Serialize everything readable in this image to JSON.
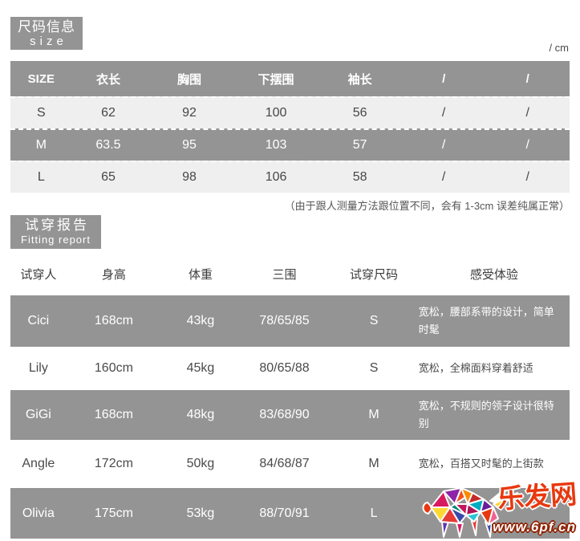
{
  "unit_label": "/ cm",
  "size_section": {
    "badge": {
      "title": "尺码信息",
      "subtitle": "size"
    },
    "table": {
      "headers": [
        "SIZE",
        "衣长",
        "胸围",
        "下摆围",
        "袖长",
        "/",
        "/"
      ],
      "rows": [
        {
          "cells": [
            "S",
            "62",
            "92",
            "100",
            "56",
            "/",
            "/"
          ],
          "highlight": false
        },
        {
          "cells": [
            "M",
            "63.5",
            "95",
            "103",
            "57",
            "/",
            "/"
          ],
          "highlight": true
        },
        {
          "cells": [
            "L",
            "65",
            "98",
            "106",
            "58",
            "/",
            "/"
          ],
          "highlight": false
        }
      ]
    },
    "note": "（由于跟人测量方法跟位置不同，会有 1-3cm 误差纯属正常）"
  },
  "fitting_section": {
    "badge": {
      "title": "试穿报告",
      "subtitle": "Fitting report"
    },
    "table": {
      "headers": [
        "试穿人",
        "身高",
        "体重",
        "三围",
        "试穿尺码",
        "感受体验"
      ],
      "rows": [
        {
          "cells": [
            "Cici",
            "168cm",
            "43kg",
            "78/65/85",
            "S",
            "宽松，腰部系带的设计，简单时髦"
          ],
          "highlight": true
        },
        {
          "cells": [
            "Lily",
            "160cm",
            "45kg",
            "80/65/88",
            "S",
            "宽松，全棉面料穿着舒适"
          ],
          "highlight": false
        },
        {
          "cells": [
            "GiGi",
            "168cm",
            "48kg",
            "83/68/90",
            "M",
            "宽松，不规则的领子设计很特别"
          ],
          "highlight": true
        },
        {
          "cells": [
            "Angle",
            "172cm",
            "50kg",
            "84/68/87",
            "M",
            "宽松，百搭又时髦的上街款"
          ],
          "highlight": false
        },
        {
          "cells": [
            "Olivia",
            "175cm",
            "53kg",
            "88/70/91",
            "L",
            ""
          ],
          "highlight": true
        }
      ]
    }
  },
  "watermark": {
    "site_name": "乐发网",
    "site_url": "www.6pf.cn"
  },
  "colors": {
    "gray": "#949494",
    "light_row": "#efefef",
    "text_dark": "#474747",
    "wm_red": "#e8380f"
  }
}
